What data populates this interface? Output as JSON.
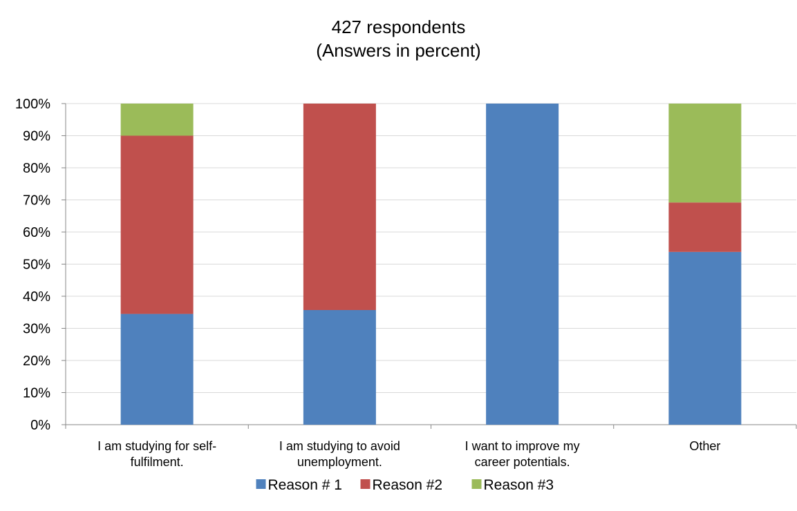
{
  "chart_data": {
    "type": "bar",
    "stacked": true,
    "title": "427 respondents",
    "subtitle": "(Answers in percent)",
    "categories": [
      [
        "I am studying for self-",
        "fulfilment."
      ],
      [
        "I am studying to avoid",
        "unemployment."
      ],
      [
        "I want to improve my",
        "career potentials."
      ],
      [
        "Other"
      ]
    ],
    "series": [
      {
        "name": "Reason # 1",
        "color": "#4F81BD",
        "values": [
          34.5,
          35.7,
          100,
          53.8
        ]
      },
      {
        "name": "Reason #2",
        "color": "#C0504D",
        "values": [
          55.5,
          64.3,
          0,
          15.4
        ]
      },
      {
        "name": "Reason #3",
        "color": "#9BBB59",
        "values": [
          10,
          0,
          0,
          30.8
        ]
      }
    ],
    "ylim": [
      0,
      100
    ],
    "yticks": [
      "0%",
      "10%",
      "20%",
      "30%",
      "40%",
      "50%",
      "60%",
      "70%",
      "80%",
      "90%",
      "100%"
    ],
    "xlabel": "",
    "ylabel": "",
    "grid": true,
    "legend": "bottom"
  }
}
